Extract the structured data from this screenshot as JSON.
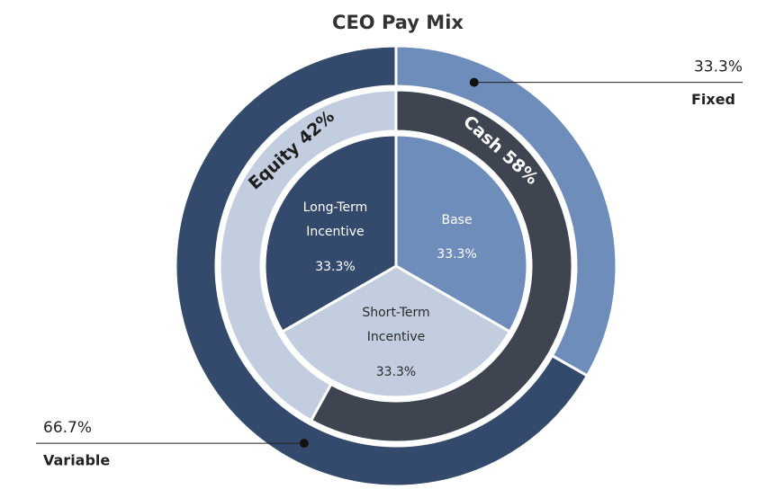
{
  "chart_data": {
    "type": "nested-donut",
    "title": "CEO Pay Mix",
    "rings": [
      {
        "categories": [
          "Base",
          "Short-Term Incentive",
          "Long-Term Incentive"
        ],
        "values": [
          33.3,
          33.3,
          33.3
        ],
        "value_labels": [
          "33.3%",
          "33.3%",
          "33.3%"
        ],
        "colors": [
          "#6e8dba",
          "#c3cde0",
          "#344a6c"
        ]
      },
      {
        "categories": [
          "Cash",
          "Equity"
        ],
        "values": [
          58,
          42
        ],
        "value_labels": [
          "Cash 58%",
          "Equity 42%"
        ],
        "colors": [
          "#3e4550",
          "#c3cde0"
        ]
      },
      {
        "categories": [
          "Fixed",
          "Variable"
        ],
        "values": [
          33.3,
          66.7
        ],
        "value_labels": [
          "33.3%",
          "66.7%"
        ],
        "colors": [
          "#6e8dba",
          "#344a6c"
        ]
      }
    ]
  }
}
